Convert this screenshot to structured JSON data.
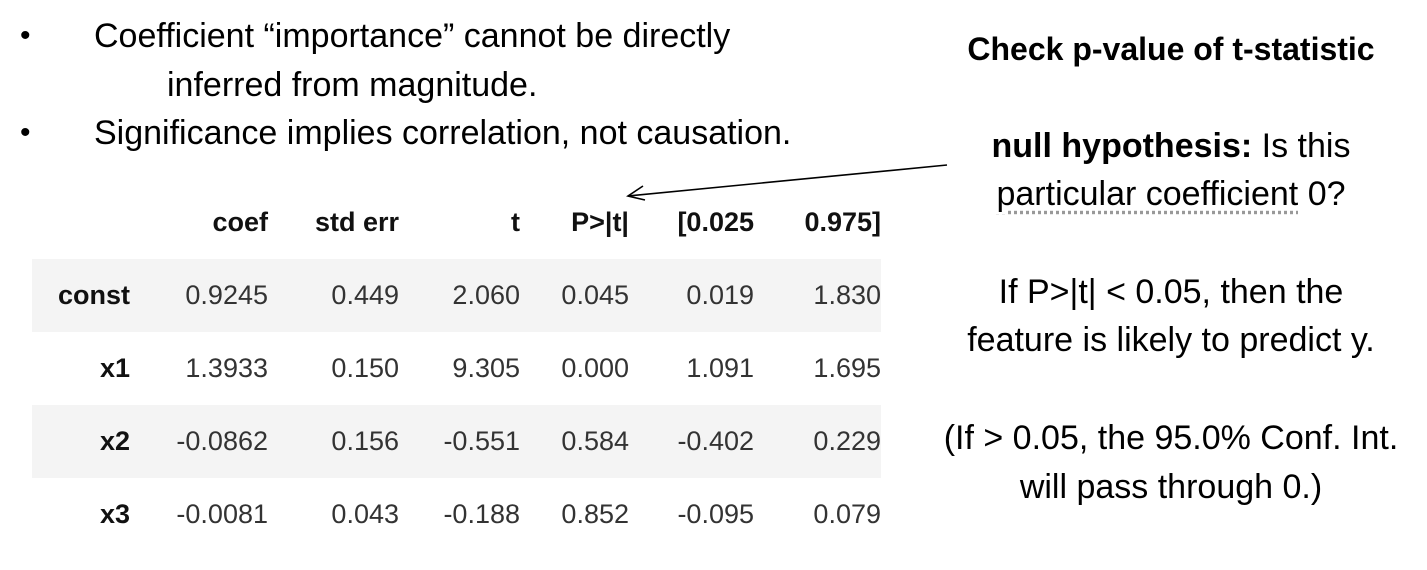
{
  "bullets": [
    {
      "line1": "Coefficient “importance” cannot be directly",
      "line2": "inferred from magnitude."
    },
    {
      "line1": "Significance implies correlation, not causation."
    }
  ],
  "bullet_glyph": "•",
  "table": {
    "headers": [
      "",
      "coef",
      "std err",
      "t",
      "P>|t|",
      "[0.025",
      "0.975]"
    ],
    "rows": [
      {
        "name": "const",
        "values": [
          "0.9245",
          "0.449",
          "2.060",
          "0.045",
          "0.019",
          "1.830"
        ]
      },
      {
        "name": "x1",
        "values": [
          "1.3933",
          "0.150",
          "9.305",
          "0.000",
          "1.091",
          "1.695"
        ]
      },
      {
        "name": "x2",
        "values": [
          "-0.0862",
          "0.156",
          "-0.551",
          "0.584",
          "-0.402",
          "0.229"
        ]
      },
      {
        "name": "x3",
        "values": [
          "-0.0081",
          "0.043",
          "-0.188",
          "0.852",
          "-0.095",
          "0.079"
        ]
      }
    ]
  },
  "right": {
    "heading": "Check p-value of t-statistic",
    "null_label": "null hypothesis:",
    "null_text": "Is this",
    "null_line2_underlined": "particular coefficient",
    "null_line2_rest": "0?",
    "rule_line1": "If P>|t| < 0.05, then the",
    "rule_line2": "feature is likely to predict y.",
    "note_line1": "(If > 0.05, the 95.0% Conf. Int.",
    "note_line2": "will pass through 0.)"
  }
}
